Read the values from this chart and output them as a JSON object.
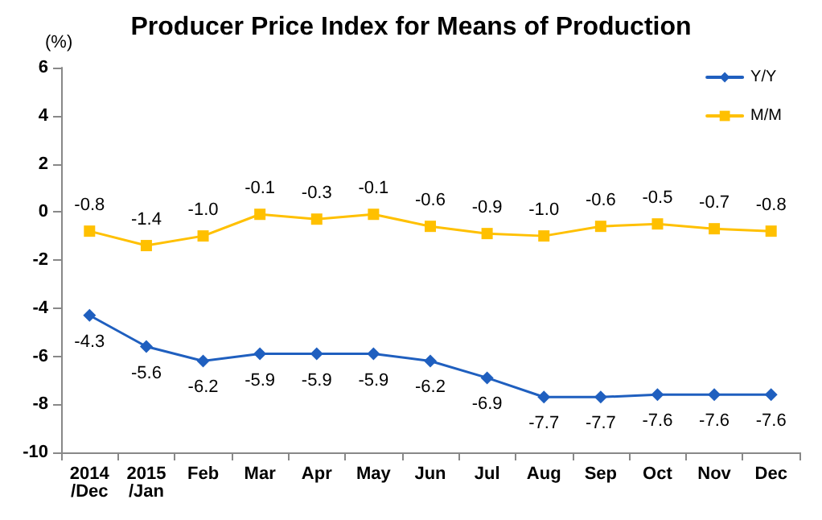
{
  "chart_data": {
    "type": "line",
    "title": "Producer Price Index for Means of Production",
    "ylabel": "(%)",
    "categories": [
      "2014\n/Dec",
      "2015\n/Jan",
      "Feb",
      "Mar",
      "Apr",
      "May",
      "Jun",
      "Jul",
      "Aug",
      "Sep",
      "Oct",
      "Nov",
      "Dec"
    ],
    "series": [
      {
        "name": "Y/Y",
        "color": "#1f5fbf",
        "marker": "diamond",
        "values": [
          -4.3,
          -5.6,
          -6.2,
          -5.9,
          -5.9,
          -5.9,
          -6.2,
          -6.9,
          -7.7,
          -7.7,
          -7.6,
          -7.6,
          -7.6
        ],
        "value_labels": [
          "-4.3",
          "-5.6",
          "-6.2",
          "-5.9",
          "-5.9",
          "-5.9",
          "-6.2",
          "-6.9",
          "-7.7",
          "-7.7",
          "-7.6",
          "-7.6",
          "-7.6"
        ]
      },
      {
        "name": "M/M",
        "color": "#ffc000",
        "marker": "square",
        "values": [
          -0.8,
          -1.4,
          -1.0,
          -0.1,
          -0.3,
          -0.1,
          -0.6,
          -0.9,
          -1.0,
          -0.6,
          -0.5,
          -0.7,
          -0.8
        ],
        "value_labels": [
          "-0.8",
          "-1.4",
          "-1.0",
          "-0.1",
          "-0.3",
          "-0.1",
          "-0.6",
          "-0.9",
          "-1.0",
          "-0.6",
          "-0.5",
          "-0.7",
          "-0.8"
        ]
      }
    ],
    "ylim": [
      -10,
      6
    ],
    "yticks": [
      -10,
      -8,
      -6,
      -4,
      -2,
      0,
      2,
      4,
      6
    ],
    "legend": "top right"
  }
}
